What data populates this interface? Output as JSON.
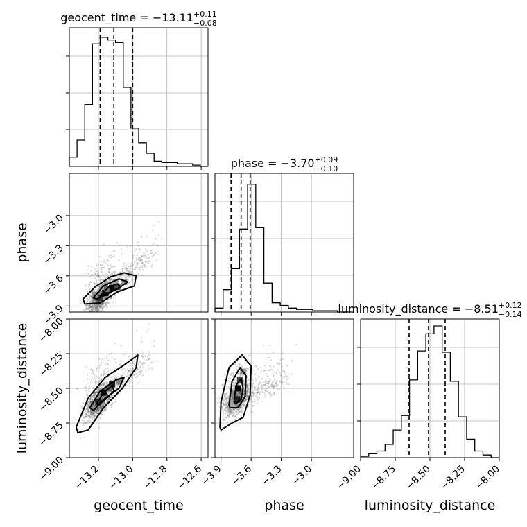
{
  "chart_data": {
    "type": "corner",
    "parameters": [
      {
        "name": "geocent_time",
        "title": "geocent_time = −13.11",
        "median": -13.11,
        "err_plus": "+0.11",
        "err_minus": "−0.08",
        "quantiles": [
          -13.19,
          -13.11,
          -13.0
        ],
        "range": [
          -13.37,
          -12.56
        ],
        "ticks": [
          -13.2,
          -13.0,
          -12.8,
          -12.6
        ],
        "tick_labels": [
          "−13.2",
          "−13.0",
          "−12.8",
          "−12.6"
        ],
        "axis_label": "geocent_time",
        "hist": [
          0.07,
          0.2,
          0.47,
          0.93,
          0.98,
          0.96,
          0.94,
          0.6,
          0.29,
          0.18,
          0.1,
          0.04,
          0.03,
          0.03,
          0.02,
          0.02,
          0.01,
          0.0
        ]
      },
      {
        "name": "phase",
        "title": "phase = −3.70",
        "median": -3.7,
        "err_plus": "+0.09",
        "err_minus": "−0.10",
        "quantiles": [
          -3.8,
          -3.7,
          -3.61
        ],
        "range": [
          -3.96,
          -2.58
        ],
        "ticks": [
          -3.9,
          -3.6,
          -3.3,
          -3.0
        ],
        "tick_labels": [
          "−3.9",
          "−3.6",
          "−3.3",
          "−3.0"
        ],
        "axis_label": "phase",
        "hist": [
          0.03,
          0.17,
          0.33,
          0.63,
          0.97,
          0.64,
          0.22,
          0.07,
          0.05,
          0.03,
          0.02,
          0.02,
          0.01,
          0.01,
          0.01,
          0.0,
          0.0
        ]
      },
      {
        "name": "luminosity_distance",
        "title": "luminosity_distance = −8.51",
        "median": -8.51,
        "err_plus": "+0.12",
        "err_minus": "−0.14",
        "quantiles": [
          -8.65,
          -8.51,
          -8.39
        ],
        "range": [
          -9.0,
          -8.0
        ],
        "ticks": [
          -9.0,
          -8.75,
          -8.5,
          -8.25,
          -8.0
        ],
        "tick_labels": [
          "−9.00",
          "−8.75",
          "−8.50",
          "−8.25",
          "−8.00"
        ],
        "axis_label": "luminosity_distance",
        "hist": [
          0.01,
          0.03,
          0.05,
          0.1,
          0.21,
          0.32,
          0.59,
          0.81,
          0.94,
          1.0,
          0.8,
          0.58,
          0.31,
          0.14,
          0.05,
          0.02,
          0.0
        ]
      }
    ],
    "pairs": [
      {
        "x": "geocent_time",
        "y": "phase",
        "contours": [
          [
            [
              -13.29,
              -3.83
            ],
            [
              -13.22,
              -3.71
            ],
            [
              -13.13,
              -3.61
            ],
            [
              -13.05,
              -3.57
            ],
            [
              -12.98,
              -3.6
            ],
            [
              -12.99,
              -3.7
            ],
            [
              -13.09,
              -3.76
            ],
            [
              -13.19,
              -3.87
            ],
            [
              -13.28,
              -3.88
            ]
          ],
          [
            [
              -13.23,
              -3.82
            ],
            [
              -13.17,
              -3.7
            ],
            [
              -13.08,
              -3.63
            ],
            [
              -13.03,
              -3.66
            ],
            [
              -13.08,
              -3.72
            ],
            [
              -13.17,
              -3.8
            ],
            [
              -13.21,
              -3.83
            ]
          ],
          [
            [
              -13.19,
              -3.8
            ],
            [
              -13.14,
              -3.71
            ],
            [
              -13.09,
              -3.68
            ],
            [
              -13.07,
              -3.71
            ],
            [
              -13.13,
              -3.76
            ],
            [
              -13.18,
              -3.8
            ]
          ]
        ],
        "cells": [
          {
            "x": -13.19,
            "y": -3.82,
            "d": 0.8
          },
          {
            "x": -13.16,
            "y": -3.77,
            "d": 0.95
          },
          {
            "x": -13.12,
            "y": -3.72,
            "d": 1.0
          },
          {
            "x": -13.09,
            "y": -3.71,
            "d": 0.7
          },
          {
            "x": -13.15,
            "y": -3.73,
            "d": 0.55
          },
          {
            "x": -13.22,
            "y": -3.79,
            "d": 0.4
          },
          {
            "x": -13.05,
            "y": -3.66,
            "d": 0.35
          },
          {
            "x": -13.1,
            "y": -3.66,
            "d": 0.3
          }
        ]
      },
      {
        "x": "geocent_time",
        "y": "luminosity_distance",
        "contours": [
          [
            [
              -13.33,
              -8.78
            ],
            [
              -13.26,
              -8.57
            ],
            [
              -13.16,
              -8.42
            ],
            [
              -13.06,
              -8.34
            ],
            [
              -12.97,
              -8.26
            ],
            [
              -12.98,
              -8.35
            ],
            [
              -13.06,
              -8.5
            ],
            [
              -13.17,
              -8.64
            ],
            [
              -13.26,
              -8.8
            ],
            [
              -13.32,
              -8.82
            ]
          ],
          [
            [
              -13.25,
              -8.64
            ],
            [
              -13.19,
              -8.52
            ],
            [
              -13.1,
              -8.44
            ],
            [
              -13.05,
              -8.42
            ],
            [
              -13.08,
              -8.5
            ],
            [
              -13.16,
              -8.57
            ],
            [
              -13.23,
              -8.66
            ]
          ],
          [
            [
              -13.21,
              -8.61
            ],
            [
              -13.17,
              -8.53
            ],
            [
              -13.12,
              -8.48
            ],
            [
              -13.11,
              -8.52
            ],
            [
              -13.16,
              -8.58
            ],
            [
              -13.2,
              -8.62
            ]
          ]
        ],
        "cells": [
          {
            "x": -13.2,
            "y": -8.6,
            "d": 0.85
          },
          {
            "x": -13.17,
            "y": -8.53,
            "d": 1.0
          },
          {
            "x": -13.12,
            "y": -8.47,
            "d": 0.9
          },
          {
            "x": -13.14,
            "y": -8.5,
            "d": 0.6
          },
          {
            "x": -13.08,
            "y": -8.45,
            "d": 0.45
          },
          {
            "x": -13.23,
            "y": -8.65,
            "d": 0.4
          }
        ]
      },
      {
        "x": "phase",
        "y": "luminosity_distance",
        "contours": [
          [
            [
              -3.91,
              -8.78
            ],
            [
              -3.9,
              -8.6
            ],
            [
              -3.82,
              -8.35
            ],
            [
              -3.69,
              -8.26
            ],
            [
              -3.6,
              -8.34
            ],
            [
              -3.61,
              -8.55
            ],
            [
              -3.68,
              -8.71
            ],
            [
              -3.79,
              -8.75
            ],
            [
              -3.9,
              -8.8
            ]
          ],
          [
            [
              -3.82,
              -8.62
            ],
            [
              -3.79,
              -8.45
            ],
            [
              -3.71,
              -8.35
            ],
            [
              -3.65,
              -8.41
            ],
            [
              -3.66,
              -8.56
            ],
            [
              -3.73,
              -8.64
            ],
            [
              -3.81,
              -8.64
            ]
          ],
          [
            [
              -3.77,
              -8.6
            ],
            [
              -3.75,
              -8.48
            ],
            [
              -3.7,
              -8.43
            ],
            [
              -3.68,
              -8.5
            ],
            [
              -3.7,
              -8.58
            ],
            [
              -3.75,
              -8.61
            ]
          ]
        ],
        "cells": [
          {
            "x": -3.74,
            "y": -8.58,
            "d": 0.9
          },
          {
            "x": -3.73,
            "y": -8.5,
            "d": 1.0
          },
          {
            "x": -3.71,
            "y": -8.44,
            "d": 0.7
          },
          {
            "x": -3.78,
            "y": -8.54,
            "d": 0.45
          },
          {
            "x": -3.68,
            "y": -8.38,
            "d": 0.35
          },
          {
            "x": -3.8,
            "y": -8.62,
            "d": 0.3
          }
        ]
      }
    ]
  }
}
